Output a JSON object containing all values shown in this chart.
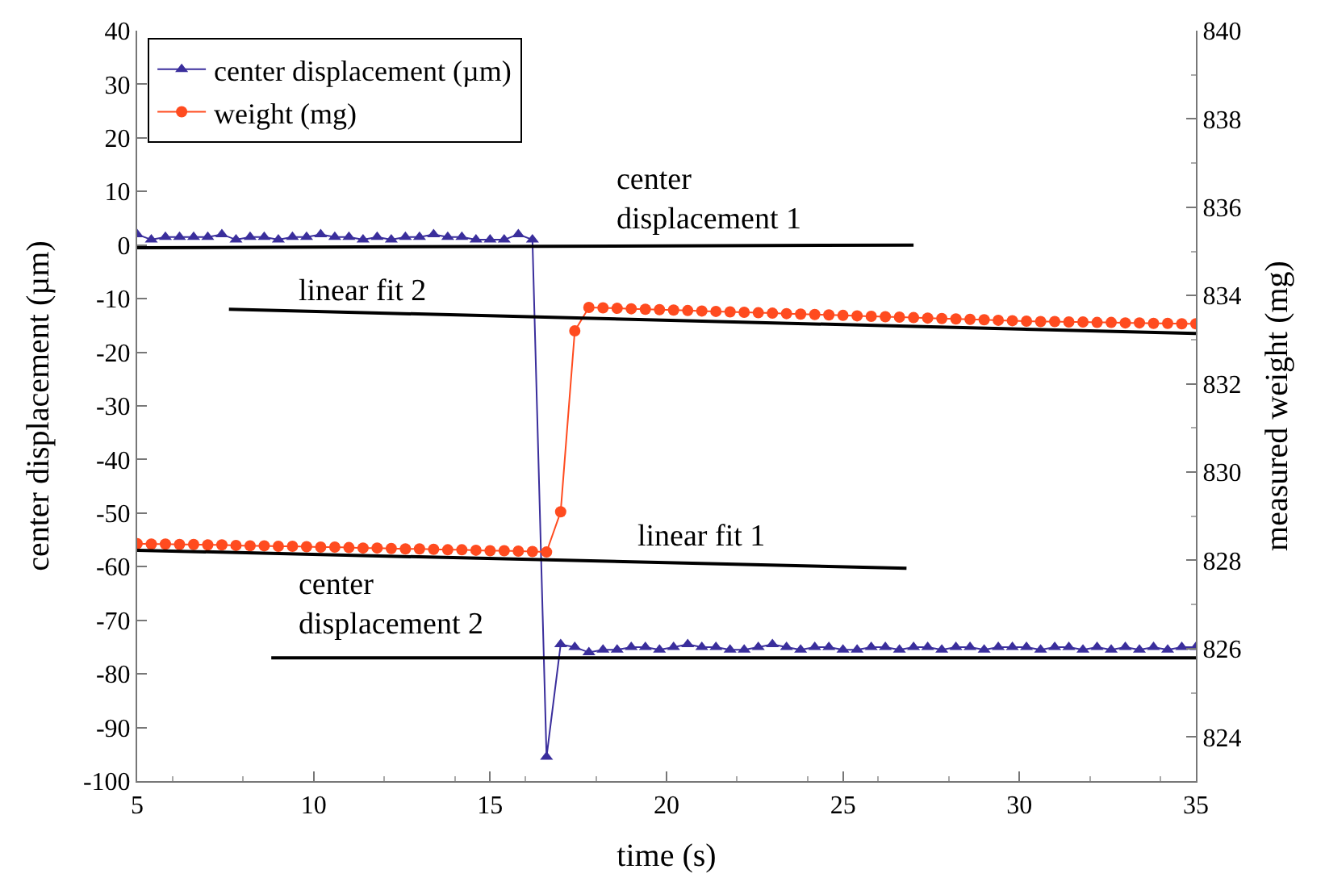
{
  "chart_data": {
    "type": "line",
    "xlabel": "time (s)",
    "ylabel": "center displacement (µm)",
    "y2label": "measured weight (mg)",
    "xlim": [
      5,
      35
    ],
    "xticks": [
      5,
      10,
      15,
      20,
      25,
      30,
      35
    ],
    "ylim": [
      -100,
      40
    ],
    "yticks": [
      -100,
      -90,
      -80,
      -70,
      -60,
      -50,
      -40,
      -30,
      -20,
      -10,
      0,
      10,
      20,
      30,
      40
    ],
    "y2lim": [
      823,
      840
    ],
    "y2ticks": [
      824,
      826,
      828,
      830,
      832,
      834,
      836,
      838,
      840
    ],
    "legend": "top left",
    "series": [
      {
        "name": "center displacement (µm)",
        "color": "#3a2e9c",
        "marker": "triangle",
        "line_style": "solid",
        "x": [
          5.0,
          5.4,
          5.8,
          6.2,
          6.6,
          7.0,
          7.4,
          7.8,
          8.2,
          8.6,
          9.0,
          9.4,
          9.8,
          10.2,
          10.6,
          11.0,
          11.4,
          11.8,
          12.2,
          12.6,
          13.0,
          13.4,
          13.8,
          14.2,
          14.6,
          15.0,
          15.4,
          15.8,
          16.2,
          16.6,
          17.0,
          17.4,
          17.8,
          18.2,
          18.6,
          19.0,
          19.4,
          19.8,
          20.2,
          20.6,
          21.0,
          21.4,
          21.8,
          22.2,
          22.6,
          23.0,
          23.4,
          23.8,
          24.2,
          24.6,
          25.0,
          25.4,
          25.8,
          26.2,
          26.6,
          27.0,
          27.4,
          27.8,
          28.2,
          28.6,
          29.0,
          29.4,
          29.8,
          30.2,
          30.6,
          31.0,
          31.4,
          31.8,
          32.2,
          32.6,
          33.0,
          33.4,
          33.8,
          34.2,
          34.6,
          35.0
        ],
        "values": [
          2,
          1,
          1.5,
          1.5,
          1.5,
          1.5,
          2,
          1,
          1.5,
          1.5,
          1,
          1.5,
          1.5,
          2,
          1.5,
          1.5,
          1,
          1.5,
          1,
          1.5,
          1.5,
          2,
          1.5,
          1.5,
          1,
          1,
          1,
          2,
          1,
          -95.5,
          -74.5,
          -75,
          -76,
          -75.5,
          -75.5,
          -75,
          -75,
          -75.5,
          -75,
          -74.5,
          -75,
          -75,
          -75.5,
          -75.5,
          -75,
          -74.5,
          -75,
          -75.5,
          -75,
          -75,
          -75.5,
          -75.5,
          -75,
          -75,
          -75.5,
          -75,
          -75,
          -75.5,
          -75,
          -75,
          -75.5,
          -75,
          -75,
          -75,
          -75.5,
          -75,
          -75,
          -75.5,
          -75,
          -75.5,
          -75,
          -75.5,
          -75,
          -75.5,
          -75,
          -75
        ]
      },
      {
        "name": "weight (mg)",
        "color": "#ff4b1f",
        "marker": "circle",
        "line_style": "solid",
        "axis": "y2",
        "x": [
          5.0,
          5.4,
          5.8,
          6.2,
          6.6,
          7.0,
          7.4,
          7.8,
          8.2,
          8.6,
          9.0,
          9.4,
          9.8,
          10.2,
          10.6,
          11.0,
          11.4,
          11.8,
          12.2,
          12.6,
          13.0,
          13.4,
          13.8,
          14.2,
          14.6,
          15.0,
          15.4,
          15.8,
          16.2,
          16.6,
          17.0,
          17.4,
          17.8,
          18.2,
          18.6,
          19.0,
          19.4,
          19.8,
          20.2,
          20.6,
          21.0,
          21.4,
          21.8,
          22.2,
          22.6,
          23.0,
          23.4,
          23.8,
          24.2,
          24.6,
          25.0,
          25.4,
          25.8,
          26.2,
          26.6,
          27.0,
          27.4,
          27.8,
          28.2,
          28.6,
          29.0,
          29.4,
          29.8,
          30.2,
          30.6,
          31.0,
          31.4,
          31.8,
          32.2,
          32.6,
          33.0,
          33.4,
          33.8,
          34.2,
          34.6,
          35.0
        ],
        "values": [
          828.38,
          828.37,
          828.37,
          828.36,
          828.36,
          828.35,
          828.35,
          828.34,
          828.33,
          828.33,
          828.32,
          828.32,
          828.31,
          828.3,
          828.3,
          828.29,
          828.28,
          828.28,
          828.27,
          828.26,
          828.26,
          828.25,
          828.24,
          828.24,
          828.23,
          828.22,
          828.22,
          828.21,
          828.2,
          828.19,
          829.1,
          833.2,
          833.73,
          833.72,
          833.71,
          833.7,
          833.69,
          833.68,
          833.67,
          833.66,
          833.65,
          833.64,
          833.63,
          833.62,
          833.61,
          833.6,
          833.59,
          833.58,
          833.57,
          833.56,
          833.55,
          833.54,
          833.53,
          833.52,
          833.51,
          833.5,
          833.49,
          833.48,
          833.47,
          833.46,
          833.45,
          833.44,
          833.43,
          833.42,
          833.41,
          833.41,
          833.4,
          833.4,
          833.39,
          833.39,
          833.38,
          833.38,
          833.37,
          833.37,
          833.36,
          833.36
        ]
      },
      {
        "color": "#000000",
        "marker": "none",
        "line_style": "solid",
        "x": [
          5,
          27
        ],
        "values": [
          -0.5,
          0
        ]
      },
      {
        "color": "#000000",
        "marker": "none",
        "line_style": "solid",
        "axis": "y2",
        "x": [
          7.6,
          35
        ],
        "values": [
          833.69,
          833.14
        ]
      },
      {
        "color": "#000000",
        "marker": "none",
        "line_style": "solid",
        "axis": "y2",
        "x": [
          5,
          26.8
        ],
        "values": [
          828.23,
          827.82
        ]
      },
      {
        "color": "#000000",
        "marker": "none",
        "line_style": "solid",
        "x": [
          8.8,
          35
        ],
        "values": [
          -77,
          -77
        ]
      }
    ],
    "annotations": [
      "center\ndisplacement 1",
      "linear fit 2",
      "linear fit 1",
      "center\ndisplacement 2"
    ]
  }
}
